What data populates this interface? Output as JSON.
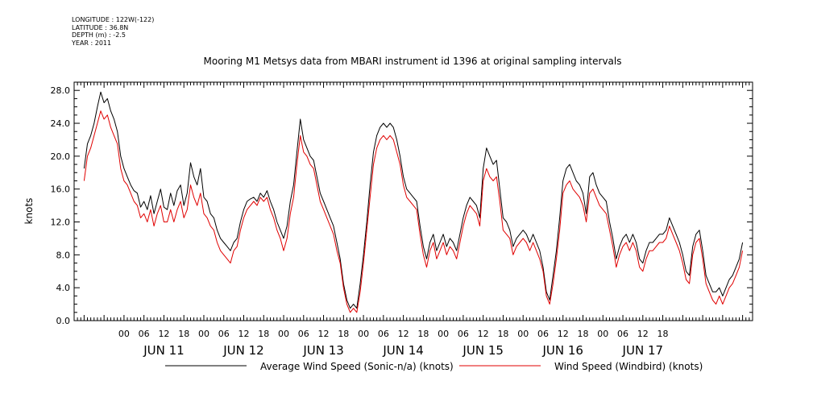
{
  "header": {
    "meta_lines": [
      "LONGITUDE : 122W(-122)",
      "LATITUDE : 36.8N",
      "DEPTH (m) : -2.5",
      "YEAR : 2011"
    ]
  },
  "chart_data": {
    "type": "line",
    "title": "Mooring M1 Metsys data from MBARI instrument id 1396 at original sampling intervals",
    "ylabel": "knots",
    "ylim": [
      0,
      29
    ],
    "yticks": [
      0,
      4,
      8,
      12,
      16,
      20,
      24,
      28
    ],
    "ytick_labels": [
      "0.0",
      "4.0",
      "8.0",
      "12.0",
      "16.0",
      "20.0",
      "24.0",
      "28.0"
    ],
    "xlim_hours": [
      -15,
      189
    ],
    "hour_tick_labels": [
      "00",
      "06",
      "12",
      "18",
      "00",
      "06",
      "12",
      "18",
      "00",
      "06",
      "12",
      "18",
      "00",
      "06",
      "12",
      "18",
      "00",
      "06",
      "12",
      "18",
      "00",
      "06",
      "12",
      "18",
      "00",
      "06",
      "12",
      "18"
    ],
    "day_labels": [
      "JUN 11",
      "JUN 12",
      "JUN 13",
      "JUN 14",
      "JUN 15",
      "JUN 16",
      "JUN 17"
    ],
    "legend_position": "bottom",
    "x_unit": "hours since 2011-06-11 00:00",
    "series": [
      {
        "name": "Average Wind Speed (Sonic-n/a) (knots)",
        "color": "#000000",
        "x": [
          -12,
          -11,
          -10,
          -9,
          -8,
          -7,
          -6,
          -5,
          -4,
          -3,
          -2,
          -1,
          0,
          1,
          2,
          3,
          4,
          5,
          6,
          7,
          8,
          9,
          10,
          11,
          12,
          13,
          14,
          15,
          16,
          17,
          18,
          19,
          20,
          21,
          22,
          23,
          24,
          25,
          26,
          27,
          28,
          29,
          30,
          31,
          32,
          33,
          34,
          35,
          36,
          37,
          38,
          39,
          40,
          41,
          42,
          43,
          44,
          45,
          46,
          47,
          48,
          49,
          50,
          51,
          52,
          53,
          54,
          55,
          56,
          57,
          58,
          59,
          60,
          61,
          62,
          63,
          64,
          65,
          66,
          67,
          68,
          69,
          70,
          71,
          72,
          73,
          74,
          75,
          76,
          77,
          78,
          79,
          80,
          81,
          82,
          83,
          84,
          85,
          86,
          87,
          88,
          89,
          90,
          91,
          92,
          93,
          94,
          95,
          96,
          97,
          98,
          99,
          100,
          101,
          102,
          103,
          104,
          105,
          106,
          107,
          108,
          109,
          110,
          111,
          112,
          113,
          114,
          115,
          116,
          117,
          118,
          119,
          120,
          121,
          122,
          123,
          124,
          125,
          126,
          127,
          128,
          129,
          130,
          131,
          132,
          133,
          134,
          135,
          136,
          137,
          138,
          139,
          140,
          141,
          142,
          143,
          144,
          145,
          146,
          147,
          148,
          149,
          150,
          151,
          152,
          153,
          154,
          155,
          156,
          157,
          158,
          159,
          160,
          161,
          162,
          163,
          164,
          165,
          166,
          167,
          168,
          169,
          170,
          171,
          172,
          173,
          174,
          175,
          176,
          177,
          178,
          179,
          180,
          181,
          182,
          183,
          184,
          185,
          186
        ],
        "values": [
          18.5,
          21.5,
          22.5,
          24.0,
          26.0,
          27.8,
          26.5,
          27.0,
          25.5,
          24.5,
          23.0,
          20.0,
          18.5,
          17.5,
          16.5,
          15.8,
          15.5,
          13.8,
          14.5,
          13.5,
          15.2,
          13.0,
          14.5,
          16.0,
          13.8,
          13.5,
          15.5,
          14.0,
          15.8,
          16.5,
          14.0,
          15.5,
          19.2,
          17.5,
          16.5,
          18.5,
          15.0,
          14.5,
          13.0,
          12.5,
          11.0,
          10.0,
          9.5,
          9.0,
          8.5,
          9.5,
          10.0,
          12.0,
          13.5,
          14.5,
          14.8,
          15.0,
          14.5,
          15.5,
          15.0,
          15.8,
          14.5,
          13.5,
          12.0,
          11.0,
          10.0,
          11.5,
          14.5,
          16.5,
          20.5,
          24.5,
          22.0,
          21.0,
          20.0,
          19.5,
          17.5,
          15.5,
          14.5,
          13.5,
          12.5,
          11.5,
          9.5,
          7.5,
          4.5,
          2.5,
          1.5,
          2.0,
          1.5,
          4.5,
          8.0,
          12.0,
          16.5,
          20.5,
          22.5,
          23.5,
          24.0,
          23.5,
          24.0,
          23.5,
          22.0,
          20.0,
          17.5,
          16.0,
          15.5,
          15.0,
          14.5,
          11.5,
          9.0,
          7.5,
          9.5,
          10.5,
          8.5,
          9.5,
          10.5,
          9.0,
          10.0,
          9.5,
          8.5,
          10.5,
          12.5,
          14.0,
          15.0,
          14.5,
          14.0,
          12.5,
          18.5,
          21.0,
          20.0,
          19.0,
          19.5,
          16.0,
          12.5,
          12.0,
          11.0,
          9.0,
          10.0,
          10.5,
          11.0,
          10.5,
          9.5,
          10.5,
          9.5,
          8.5,
          6.5,
          3.5,
          2.5,
          5.5,
          8.5,
          12.5,
          17.0,
          18.5,
          19.0,
          18.0,
          17.0,
          16.5,
          15.5,
          13.0,
          17.5,
          18.0,
          16.5,
          15.5,
          15.0,
          14.5,
          12.0,
          10.0,
          7.5,
          9.0,
          10.0,
          10.5,
          9.5,
          10.5,
          9.5,
          7.5,
          7.0,
          8.5,
          9.5,
          9.5,
          10.0,
          10.5,
          10.5,
          11.0,
          12.5,
          11.5,
          10.5,
          9.5,
          8.0,
          6.0,
          5.5,
          9.0,
          10.5,
          11.0,
          8.5,
          5.5,
          4.5,
          3.5,
          3.5,
          4.0,
          3.0,
          4.0,
          5.0,
          5.5,
          6.5,
          7.5,
          9.5
        ]
      },
      {
        "name": "Wind Speed (Windbird) (knots)",
        "color": "#e00000",
        "x": [
          -12,
          -11,
          -10,
          -9,
          -8,
          -7,
          -6,
          -5,
          -4,
          -3,
          -2,
          -1,
          0,
          1,
          2,
          3,
          4,
          5,
          6,
          7,
          8,
          9,
          10,
          11,
          12,
          13,
          14,
          15,
          16,
          17,
          18,
          19,
          20,
          21,
          22,
          23,
          24,
          25,
          26,
          27,
          28,
          29,
          30,
          31,
          32,
          33,
          34,
          35,
          36,
          37,
          38,
          39,
          40,
          41,
          42,
          43,
          44,
          45,
          46,
          47,
          48,
          49,
          50,
          51,
          52,
          53,
          54,
          55,
          56,
          57,
          58,
          59,
          60,
          61,
          62,
          63,
          64,
          65,
          66,
          67,
          68,
          69,
          70,
          71,
          72,
          73,
          74,
          75,
          76,
          77,
          78,
          79,
          80,
          81,
          82,
          83,
          84,
          85,
          86,
          87,
          88,
          89,
          90,
          91,
          92,
          93,
          94,
          95,
          96,
          97,
          98,
          99,
          100,
          101,
          102,
          103,
          104,
          105,
          106,
          107,
          108,
          109,
          110,
          111,
          112,
          113,
          114,
          115,
          116,
          117,
          118,
          119,
          120,
          121,
          122,
          123,
          124,
          125,
          126,
          127,
          128,
          129,
          130,
          131,
          132,
          133,
          134,
          135,
          136,
          137,
          138,
          139,
          140,
          141,
          142,
          143,
          144,
          145,
          146,
          147,
          148,
          149,
          150,
          151,
          152,
          153,
          154,
          155,
          156,
          157,
          158,
          159,
          160,
          161,
          162,
          163,
          164,
          165,
          166,
          167,
          168,
          169,
          170,
          171,
          172,
          173,
          174,
          175,
          176,
          177,
          178,
          179,
          180,
          181,
          182,
          183,
          184,
          185,
          186
        ],
        "values": [
          17.0,
          20.0,
          21.0,
          22.5,
          24.0,
          25.5,
          24.5,
          25.0,
          23.5,
          22.5,
          21.5,
          18.5,
          17.0,
          16.5,
          15.5,
          14.5,
          14.0,
          12.5,
          13.0,
          12.0,
          13.5,
          11.5,
          13.0,
          14.0,
          12.0,
          12.0,
          13.5,
          12.0,
          13.5,
          14.5,
          12.5,
          13.5,
          16.5,
          15.0,
          14.0,
          15.5,
          13.0,
          12.5,
          11.5,
          11.0,
          9.5,
          8.5,
          8.0,
          7.5,
          7.0,
          8.5,
          9.0,
          11.0,
          12.5,
          13.5,
          14.0,
          14.5,
          14.0,
          15.0,
          14.5,
          15.0,
          13.5,
          12.5,
          11.0,
          10.0,
          8.5,
          10.0,
          13.0,
          15.0,
          19.0,
          22.5,
          20.5,
          20.0,
          19.0,
          18.5,
          16.5,
          14.5,
          13.5,
          12.5,
          11.5,
          10.5,
          8.5,
          7.0,
          4.0,
          2.0,
          1.0,
          1.5,
          1.0,
          3.5,
          7.0,
          11.0,
          15.0,
          19.0,
          21.0,
          22.0,
          22.5,
          22.0,
          22.5,
          22.0,
          20.5,
          19.0,
          16.5,
          15.0,
          14.5,
          14.0,
          13.5,
          10.5,
          8.0,
          6.5,
          8.5,
          9.5,
          7.5,
          8.5,
          9.5,
          8.0,
          9.0,
          8.5,
          7.5,
          9.5,
          11.5,
          13.0,
          14.0,
          13.5,
          13.0,
          11.5,
          17.0,
          18.5,
          17.5,
          17.0,
          17.5,
          14.5,
          11.0,
          10.5,
          10.0,
          8.0,
          9.0,
          9.5,
          10.0,
          9.5,
          8.5,
          9.5,
          8.5,
          7.5,
          6.0,
          3.0,
          2.0,
          4.5,
          7.5,
          11.0,
          15.5,
          16.5,
          17.0,
          16.0,
          15.5,
          15.0,
          14.0,
          12.0,
          15.5,
          16.0,
          15.0,
          14.0,
          13.5,
          13.0,
          11.0,
          9.0,
          6.5,
          8.0,
          9.0,
          9.5,
          8.5,
          9.5,
          8.5,
          6.5,
          6.0,
          7.5,
          8.5,
          8.5,
          9.0,
          9.5,
          9.5,
          10.0,
          11.5,
          10.5,
          9.5,
          8.5,
          7.0,
          5.0,
          4.5,
          8.0,
          9.5,
          10.0,
          7.5,
          4.5,
          3.5,
          2.5,
          2.0,
          3.0,
          2.0,
          3.0,
          4.0,
          4.5,
          5.5,
          6.5,
          8.5
        ]
      }
    ]
  }
}
